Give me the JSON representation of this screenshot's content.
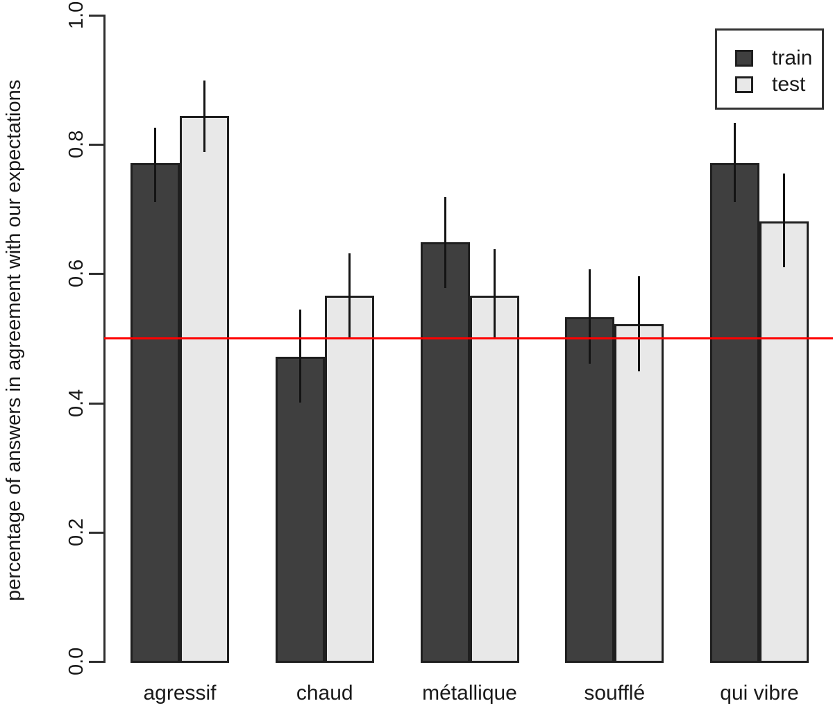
{
  "chart_data": {
    "type": "bar",
    "title": "",
    "xlabel": "",
    "ylabel": "percentage of answers in agreement with our expectations",
    "categories": [
      "agressif",
      "chaud",
      "métallique",
      "soufflé",
      "qui vibre"
    ],
    "series": [
      {
        "name": "train",
        "values": [
          0.77,
          0.47,
          0.648,
          0.532,
          0.77
        ],
        "error_low": [
          0.71,
          0.4,
          0.577,
          0.46,
          0.71
        ],
        "error_high": [
          0.825,
          0.543,
          0.717,
          0.606,
          0.832
        ]
      },
      {
        "name": "test",
        "values": [
          0.843,
          0.565,
          0.565,
          0.521,
          0.68
        ],
        "error_low": [
          0.787,
          0.5,
          0.5,
          0.448,
          0.609
        ],
        "error_high": [
          0.898,
          0.63,
          0.637,
          0.595,
          0.754
        ]
      }
    ],
    "ylim": [
      0.0,
      1.0
    ],
    "yticks": [
      0.0,
      0.2,
      0.4,
      0.6,
      0.8,
      1.0
    ],
    "grid": false,
    "reference_line": {
      "value": 0.5,
      "color": "#ff0000"
    },
    "legend": {
      "position": "top-right",
      "entries": [
        "train",
        "test"
      ]
    },
    "colors": {
      "train": "#3f3f3f",
      "test": "#e8e8e8",
      "bar_border": "#1f1f1f",
      "axis": "#2e2e2e",
      "text": "#1a1a1a",
      "reference": "#ff0000"
    }
  }
}
